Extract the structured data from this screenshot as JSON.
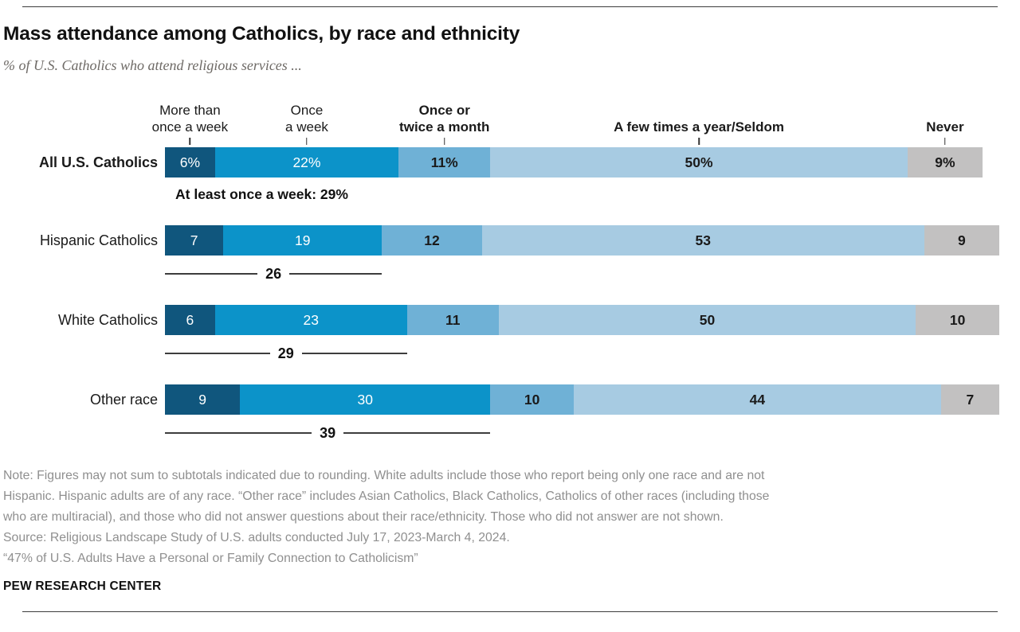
{
  "header": {
    "title": "Mass attendance among Catholics, by race and ethnicity",
    "subtitle": "% of U.S. Catholics who attend religious services ..."
  },
  "chart_data": {
    "type": "bar",
    "stacked": true,
    "orientation": "horizontal",
    "unit": "%",
    "legend_position": "top-as-column-headers",
    "segment_colors": [
      "#10567d",
      "#0c93c9",
      "#6fb1d6",
      "#a7cbe2",
      "#c2c1c1"
    ],
    "axis_headers": [
      {
        "lines": [
          "More than",
          "once a week"
        ],
        "bold": false,
        "center_pct": 3
      },
      {
        "lines": [
          "Once",
          "a week"
        ],
        "bold": false,
        "center_pct": 17
      },
      {
        "lines": [
          "Once or",
          "twice a month"
        ],
        "bold": true,
        "center_pct": 33.5
      },
      {
        "lines": [
          "A few times a year/Seldom"
        ],
        "bold": true,
        "center_pct": 64
      },
      {
        "lines": [
          "Never"
        ],
        "bold": true,
        "center_pct": 93.5
      }
    ],
    "categories": [
      "All U.S. Catholics",
      "Hispanic Catholics",
      "White Catholics",
      "Other race"
    ],
    "series": [
      {
        "name": "More than once a week",
        "values": [
          6,
          7,
          6,
          9
        ]
      },
      {
        "name": "Once a week",
        "values": [
          22,
          19,
          23,
          30
        ]
      },
      {
        "name": "Once or twice a month",
        "values": [
          11,
          12,
          11,
          10
        ]
      },
      {
        "name": "A few times a year/Seldom",
        "values": [
          50,
          53,
          50,
          44
        ]
      },
      {
        "name": "Never",
        "values": [
          9,
          9,
          10,
          7
        ]
      }
    ],
    "rows": [
      {
        "label": "All U.S. Catholics",
        "bold_label": true,
        "values": [
          6,
          22,
          11,
          50,
          9
        ],
        "display": [
          "6%",
          "22%",
          "11%",
          "50%",
          "9%"
        ],
        "annotation": "At least once a week: 29%",
        "subtotal": null
      },
      {
        "label": "Hispanic Catholics",
        "bold_label": false,
        "values": [
          7,
          19,
          12,
          53,
          9
        ],
        "display": [
          "7",
          "19",
          "12",
          "53",
          "9"
        ],
        "annotation": null,
        "subtotal": 26
      },
      {
        "label": "White Catholics",
        "bold_label": false,
        "values": [
          6,
          23,
          11,
          50,
          10
        ],
        "display": [
          "6",
          "23",
          "11",
          "50",
          "10"
        ],
        "annotation": null,
        "subtotal": 29
      },
      {
        "label": "Other race",
        "bold_label": false,
        "values": [
          9,
          30,
          10,
          44,
          7
        ],
        "display": [
          "9",
          "30",
          "10",
          "44",
          "7"
        ],
        "annotation": null,
        "subtotal": 39
      }
    ]
  },
  "notes": {
    "lines": [
      "Note: Figures may not sum to subtotals indicated due to rounding. White adults include those who report being only one race and are not",
      "Hispanic. Hispanic adults are of any race. “Other race” includes Asian Catholics, Black Catholics, Catholics of other races (including those",
      "who are multiracial), and those who did not answer questions about their race/ethnicity. Those who did not answer are not shown."
    ],
    "source": "Source: Religious Landscape Study of U.S. adults conducted July 17, 2023-March 4, 2024.",
    "quote": "“47% of U.S. Adults Have a Personal or Family Connection to Catholicism”"
  },
  "footer": {
    "brand": "PEW RESEARCH CENTER"
  }
}
